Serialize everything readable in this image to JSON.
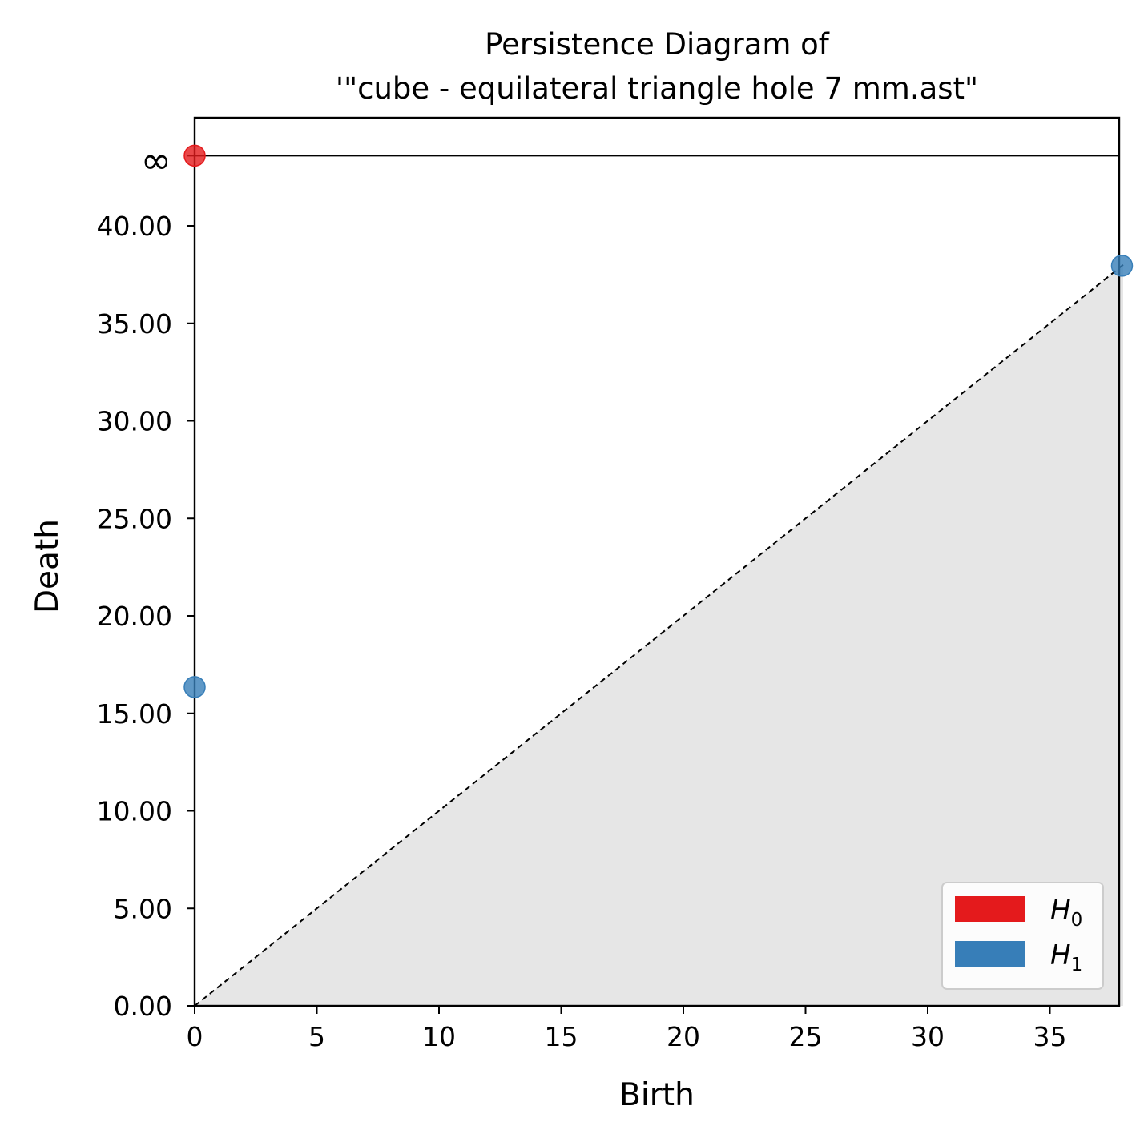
{
  "chart_data": {
    "type": "scatter",
    "title_line1": "Persistence Diagram of",
    "title_line2": "'\"cube - equilateral triangle hole 7 mm.ast\"",
    "xlabel": "Birth",
    "ylabel": "Death",
    "xlim": [
      0,
      38
    ],
    "ylim": [
      0,
      43.6
    ],
    "infinity_level": 43.6,
    "infinity_label": "∞",
    "x_ticks": [
      0,
      5,
      10,
      15,
      20,
      25,
      30,
      35
    ],
    "y_ticks": [
      0,
      5,
      10,
      15,
      20,
      25,
      30,
      35,
      40
    ],
    "y_tick_labels": [
      "0.00",
      "5.00",
      "10.00",
      "15.00",
      "20.00",
      "25.00",
      "30.00",
      "35.00",
      "40.00"
    ],
    "diagonal": "dashed",
    "shade_below_diagonal": true,
    "series": [
      {
        "name": "H0",
        "label_base": "H",
        "label_sub": "0",
        "color": "#e41a1c",
        "points": [
          {
            "birth": 0,
            "death": "inf"
          }
        ]
      },
      {
        "name": "H1",
        "label_base": "H",
        "label_sub": "1",
        "color": "#377eb8",
        "points": [
          {
            "birth": 0,
            "death": 16.35
          },
          {
            "birth": 37.95,
            "death": 37.95
          }
        ]
      }
    ],
    "legend": "lower-right"
  }
}
